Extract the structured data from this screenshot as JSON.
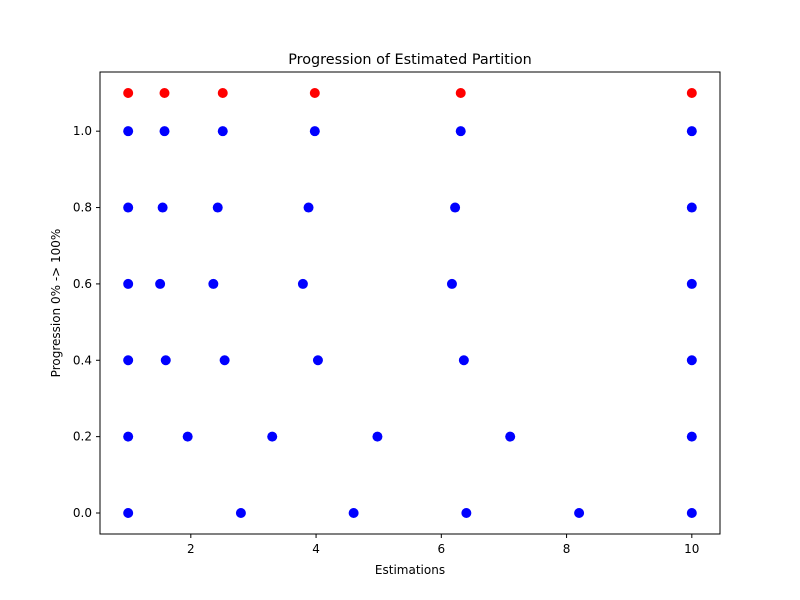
{
  "chart_data": {
    "type": "scatter",
    "title": "Progression of Estimated Partition",
    "xlabel": "Estimations",
    "ylabel": "Progression 0% -> 100%",
    "xlim": [
      0.55,
      10.45
    ],
    "ylim": [
      -0.055,
      1.155
    ],
    "x_ticks": [
      2,
      4,
      6,
      8,
      10
    ],
    "x_tick_labels": [
      "2",
      "4",
      "6",
      "8",
      "10"
    ],
    "y_ticks": [
      0.0,
      0.2,
      0.4,
      0.6,
      0.8,
      1.0
    ],
    "y_tick_labels": [
      "0.0",
      "0.2",
      "0.4",
      "0.6",
      "0.8",
      "1.0"
    ],
    "grid": false,
    "series": [
      {
        "color": "#0000ff",
        "points": [
          {
            "x": 1.0,
            "y": 0.0
          },
          {
            "x": 2.8,
            "y": 0.0
          },
          {
            "x": 4.6,
            "y": 0.0
          },
          {
            "x": 6.4,
            "y": 0.0
          },
          {
            "x": 8.2,
            "y": 0.0
          },
          {
            "x": 10.0,
            "y": 0.0
          },
          {
            "x": 1.0,
            "y": 0.2
          },
          {
            "x": 1.95,
            "y": 0.2
          },
          {
            "x": 3.3,
            "y": 0.2
          },
          {
            "x": 4.98,
            "y": 0.2
          },
          {
            "x": 7.1,
            "y": 0.2
          },
          {
            "x": 10.0,
            "y": 0.2
          },
          {
            "x": 1.0,
            "y": 0.4
          },
          {
            "x": 1.6,
            "y": 0.4
          },
          {
            "x": 2.54,
            "y": 0.4
          },
          {
            "x": 4.03,
            "y": 0.4
          },
          {
            "x": 6.36,
            "y": 0.4
          },
          {
            "x": 10.0,
            "y": 0.4
          },
          {
            "x": 1.0,
            "y": 0.6
          },
          {
            "x": 1.51,
            "y": 0.6
          },
          {
            "x": 2.36,
            "y": 0.6
          },
          {
            "x": 3.79,
            "y": 0.6
          },
          {
            "x": 6.17,
            "y": 0.6
          },
          {
            "x": 10.0,
            "y": 0.6
          },
          {
            "x": 1.0,
            "y": 0.8
          },
          {
            "x": 1.55,
            "y": 0.8
          },
          {
            "x": 2.43,
            "y": 0.8
          },
          {
            "x": 3.88,
            "y": 0.8
          },
          {
            "x": 6.22,
            "y": 0.8
          },
          {
            "x": 10.0,
            "y": 0.8
          },
          {
            "x": 1.0,
            "y": 1.0
          },
          {
            "x": 1.58,
            "y": 1.0
          },
          {
            "x": 2.51,
            "y": 1.0
          },
          {
            "x": 3.98,
            "y": 1.0
          },
          {
            "x": 6.31,
            "y": 1.0
          },
          {
            "x": 10.0,
            "y": 1.0
          }
        ]
      },
      {
        "color": "#ff0000",
        "points": [
          {
            "x": 1.0,
            "y": 1.1
          },
          {
            "x": 1.58,
            "y": 1.1
          },
          {
            "x": 2.51,
            "y": 1.1
          },
          {
            "x": 3.98,
            "y": 1.1
          },
          {
            "x": 6.31,
            "y": 1.1
          },
          {
            "x": 10.0,
            "y": 1.1
          }
        ]
      }
    ]
  }
}
